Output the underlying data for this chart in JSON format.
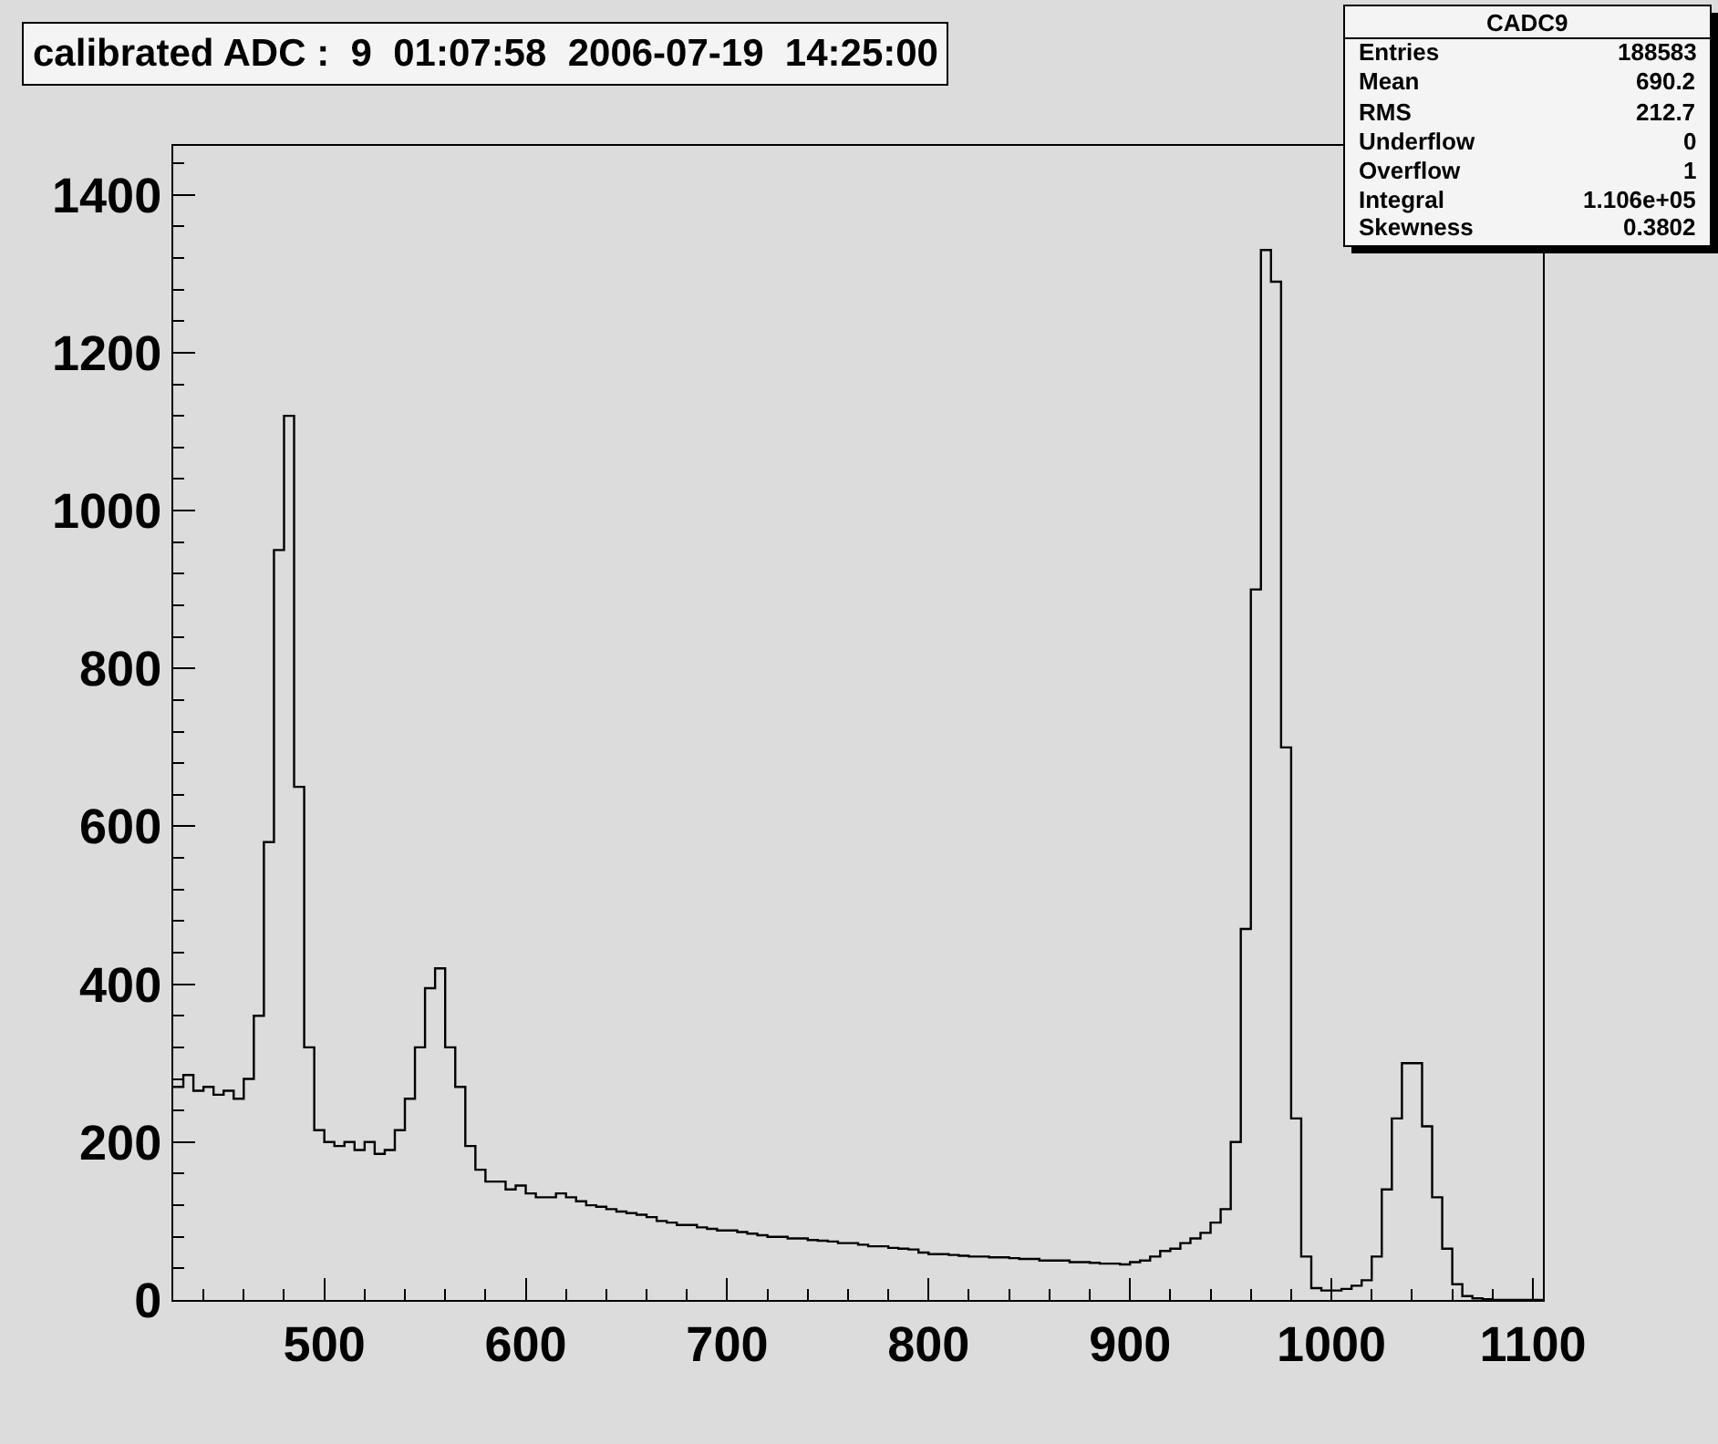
{
  "chart_data": {
    "type": "histogram",
    "title": "calibrated ADC :  9  01:07:58  2006-07-19  14:25:00",
    "annotations": [
      "CADC9",
      "Entries 188583",
      "Mean 690.2",
      "RMS 212.7",
      "Underflow 0",
      "Overflow 1",
      "Integral 1.106e+05",
      "Skewness 0.3802"
    ],
    "bins": [
      425,
      430,
      435,
      440,
      445,
      450,
      455,
      460,
      465,
      470,
      475,
      480,
      485,
      490,
      495,
      500,
      505,
      510,
      515,
      520,
      525,
      530,
      535,
      540,
      545,
      550,
      555,
      560,
      565,
      570,
      575,
      580,
      585,
      590,
      595,
      600,
      605,
      610,
      615,
      620,
      625,
      630,
      635,
      640,
      645,
      650,
      655,
      660,
      665,
      670,
      675,
      680,
      685,
      690,
      695,
      700,
      705,
      710,
      715,
      720,
      725,
      730,
      735,
      740,
      745,
      750,
      755,
      760,
      765,
      770,
      775,
      780,
      785,
      790,
      795,
      800,
      805,
      810,
      815,
      820,
      825,
      830,
      835,
      840,
      845,
      850,
      855,
      860,
      865,
      870,
      875,
      880,
      885,
      890,
      895,
      900,
      905,
      910,
      915,
      920,
      925,
      930,
      935,
      940,
      945,
      950,
      955,
      960,
      965,
      970,
      975,
      980,
      985,
      990,
      995,
      1000,
      1005,
      1010,
      1015,
      1020,
      1025,
      1030,
      1035,
      1040,
      1045,
      1050,
      1055,
      1060,
      1065,
      1070,
      1075,
      1080,
      1085,
      1090,
      1095,
      1100,
      1105
    ],
    "values": [
      270,
      285,
      265,
      270,
      260,
      265,
      255,
      280,
      360,
      580,
      950,
      1120,
      650,
      320,
      215,
      200,
      195,
      200,
      190,
      200,
      185,
      190,
      215,
      255,
      320,
      395,
      420,
      320,
      270,
      195,
      165,
      150,
      150,
      140,
      145,
      135,
      130,
      130,
      135,
      130,
      125,
      120,
      118,
      115,
      112,
      110,
      108,
      105,
      100,
      98,
      95,
      95,
      92,
      90,
      88,
      88,
      86,
      84,
      82,
      80,
      80,
      78,
      78,
      76,
      75,
      74,
      72,
      72,
      70,
      68,
      68,
      66,
      65,
      64,
      60,
      58,
      58,
      57,
      56,
      55,
      55,
      54,
      54,
      53,
      52,
      52,
      50,
      50,
      50,
      48,
      48,
      47,
      46,
      46,
      45,
      48,
      50,
      55,
      62,
      65,
      72,
      78,
      85,
      98,
      115,
      200,
      470,
      900,
      1330,
      1290,
      700,
      230,
      55,
      15,
      12,
      12,
      14,
      18,
      25,
      55,
      140,
      230,
      300,
      300,
      220,
      130,
      65,
      20,
      5,
      2,
      1,
      0,
      0,
      0,
      0,
      0
    ],
    "color": "#000000",
    "xlim": [
      425,
      1105
    ],
    "ylim": [
      0,
      1462
    ],
    "xticks": [
      500,
      600,
      700,
      800,
      900,
      1000,
      1100
    ],
    "yticks": [
      0,
      200,
      400,
      600,
      800,
      1000,
      1200,
      1400
    ],
    "grid": false
  }
}
